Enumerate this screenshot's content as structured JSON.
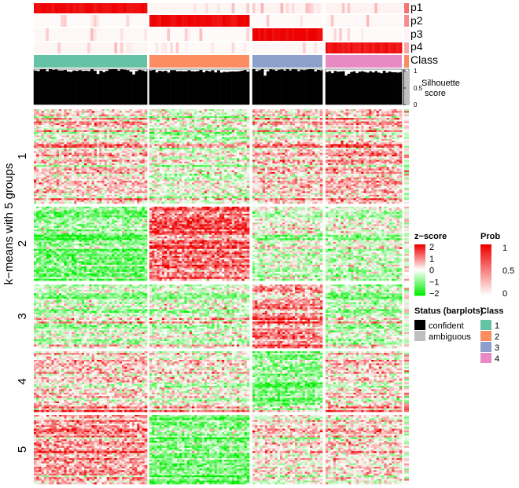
{
  "colors": {
    "zscore_low": "#00ee00",
    "zscore_mid": "#ffffff",
    "zscore_high": "#ee0000",
    "prob_low": "#ffffff",
    "prob_high": "#ee0000",
    "confident": "#000000",
    "ambiguous": "#bebebe",
    "class1": "#66c2a5",
    "class2": "#fc8d62",
    "class3": "#8da0cb",
    "class4": "#e78ac3"
  },
  "chart_data": {
    "type": "heatmap",
    "row_split_title": "k−means with 5 groups",
    "column_groups": [
      {
        "label": "1",
        "n_samples": 38,
        "prob_p1": 0.95,
        "prob_p2": 0.02,
        "prob_p3": 0.03,
        "prob_p4": 0.04,
        "silhouette_mean": 0.97
      },
      {
        "label": "2",
        "n_samples": 34,
        "prob_p1": 0.04,
        "prob_p2": 0.96,
        "prob_p3": 0.02,
        "prob_p4": 0.02,
        "silhouette_mean": 0.95
      },
      {
        "label": "3",
        "n_samples": 25,
        "prob_p1": 0.05,
        "prob_p2": 0.02,
        "prob_p3": 0.97,
        "prob_p4": 0.03,
        "silhouette_mean": 0.98
      },
      {
        "label": "4",
        "n_samples": 28,
        "prob_p1": 0.05,
        "prob_p2": 0.03,
        "prob_p3": 0.02,
        "prob_p4": 0.92,
        "silhouette_mean": 0.93
      }
    ],
    "row_groups": [
      {
        "label": "1",
        "n_rows": 120,
        "zscore_mean_by_class": [
          0.3,
          -0.2,
          0.3,
          0.5
        ]
      },
      {
        "label": "2",
        "n_rows": 90,
        "zscore_mean_by_class": [
          -0.9,
          1.2,
          -0.2,
          -0.3
        ]
      },
      {
        "label": "3",
        "n_rows": 85,
        "zscore_mean_by_class": [
          -0.3,
          -0.2,
          0.9,
          -0.4
        ]
      },
      {
        "label": "4",
        "n_rows": 80,
        "zscore_mean_by_class": [
          0.4,
          0.1,
          -0.8,
          0.3
        ]
      },
      {
        "label": "5",
        "n_rows": 90,
        "zscore_mean_by_class": [
          0.7,
          -1.0,
          0.1,
          0.2
        ]
      }
    ],
    "annotation_rows": [
      "p1",
      "p2",
      "p3",
      "p4",
      "Class"
    ],
    "silhouette_track": {
      "label": "Silhouette\nscore",
      "ticks": [
        "1",
        "0.5",
        "0"
      ],
      "ylim": [
        0,
        1
      ]
    },
    "zscore_legend": {
      "title": "z−score",
      "ticks": [
        "2",
        "1",
        "0",
        "−1",
        "−2"
      ],
      "range": [
        -2,
        2
      ]
    },
    "prob_legend": {
      "title": "Prob",
      "ticks": [
        "1",
        "0.5",
        "0"
      ],
      "range": [
        0,
        1
      ]
    },
    "status_legend": {
      "title": "Status (barplots)",
      "items": [
        "confident",
        "ambiguous"
      ]
    },
    "class_legend": {
      "title": "Class",
      "items": [
        "1",
        "2",
        "3",
        "4"
      ]
    }
  }
}
